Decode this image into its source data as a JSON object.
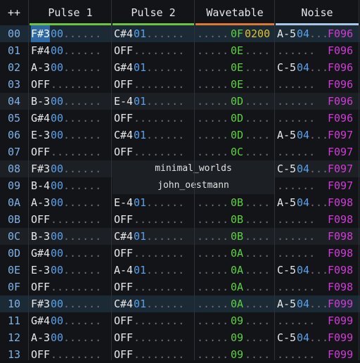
{
  "header": {
    "corner": "++",
    "columns": [
      {
        "label": "Pulse 1",
        "color": "#6fc43e"
      },
      {
        "label": "Pulse 2",
        "color": "#6fc43e"
      },
      {
        "label": "Wavetable",
        "color": "#e07830"
      },
      {
        "label": "Noise",
        "color": "#a8c8e8"
      }
    ]
  },
  "rows": [
    {
      "num": "00",
      "p1": "F#3",
      "p1i": "00",
      "p2": "C#4",
      "p2i": "01",
      "wt": "0F",
      "wtc": "0200",
      "nz": "A-5",
      "nzi": "04",
      "fx": "F096",
      "cursor": true,
      "p1sel": true
    },
    {
      "num": "01",
      "p1": "F#4",
      "p1i": "00",
      "p2": "OFF",
      "p2i": "",
      "wt": "0E",
      "wtc": "",
      "nz": "",
      "nzi": "",
      "fx": "F096"
    },
    {
      "num": "02",
      "p1": "A-3",
      "p1i": "00",
      "p2": "G#4",
      "p2i": "01",
      "wt": "0E",
      "wtc": "",
      "nz": "C-5",
      "nzi": "04",
      "fx": "F096"
    },
    {
      "num": "03",
      "p1": "OFF",
      "p1i": "",
      "p2": "OFF",
      "p2i": "",
      "wt": "0E",
      "wtc": "",
      "nz": "",
      "nzi": "",
      "fx": "F096"
    },
    {
      "num": "04",
      "p1": "B-3",
      "p1i": "00",
      "p2": "E-4",
      "p2i": "01",
      "wt": "0D",
      "wtc": "",
      "nz": "",
      "nzi": "",
      "fx": "F096",
      "alt": true
    },
    {
      "num": "05",
      "p1": "G#4",
      "p1i": "00",
      "p2": "OFF",
      "p2i": "",
      "wt": "0D",
      "wtc": "",
      "nz": "",
      "nzi": "",
      "fx": "F096"
    },
    {
      "num": "06",
      "p1": "E-3",
      "p1i": "00",
      "p2": "C#4",
      "p2i": "01",
      "wt": "0D",
      "wtc": "",
      "nz": "A-5",
      "nzi": "04",
      "fx": "F097"
    },
    {
      "num": "07",
      "p1": "OFF",
      "p1i": "",
      "p2": "OFF",
      "p2i": "",
      "wt": "0C",
      "wtc": "",
      "nz": "",
      "nzi": "",
      "fx": "F097"
    },
    {
      "num": "08",
      "p1": "F#3",
      "p1i": "00",
      "overlay": "minimal_worlds",
      "nz": "C-5",
      "nzi": "04",
      "fx": "F097",
      "alt": true
    },
    {
      "num": "09",
      "p1": "B-4",
      "p1i": "00",
      "overlay": "john_oestmann",
      "nz": "",
      "nzi": "",
      "fx": "F097"
    },
    {
      "num": "0A",
      "p1": "A-3",
      "p1i": "00",
      "p2": "E-4",
      "p2i": "01",
      "wt": "0B",
      "wtc": "",
      "nz": "A-5",
      "nzi": "04",
      "fx": "F098"
    },
    {
      "num": "0B",
      "p1": "OFF",
      "p1i": "",
      "p2": "OFF",
      "p2i": "",
      "wt": "0B",
      "wtc": "",
      "nz": "",
      "nzi": "",
      "fx": "F098"
    },
    {
      "num": "0C",
      "p1": "B-3",
      "p1i": "00",
      "p2": "C#4",
      "p2i": "01",
      "wt": "0B",
      "wtc": "",
      "nz": "",
      "nzi": "",
      "fx": "F098",
      "alt": true
    },
    {
      "num": "0D",
      "p1": "G#4",
      "p1i": "00",
      "p2": "OFF",
      "p2i": "",
      "wt": "0A",
      "wtc": "",
      "nz": "",
      "nzi": "",
      "fx": "F098"
    },
    {
      "num": "0E",
      "p1": "E-3",
      "p1i": "00",
      "p2": "A-4",
      "p2i": "01",
      "wt": "0A",
      "wtc": "",
      "nz": "C-5",
      "nzi": "04",
      "fx": "F098"
    },
    {
      "num": "0F",
      "p1": "OFF",
      "p1i": "",
      "p2": "OFF",
      "p2i": "",
      "wt": "0A",
      "wtc": "",
      "nz": "",
      "nzi": "",
      "fx": "F098"
    },
    {
      "num": "10",
      "p1": "F#3",
      "p1i": "00",
      "p2": "C#4",
      "p2i": "01",
      "wt": "0A",
      "wtc": "",
      "nz": "A-5",
      "nzi": "04",
      "fx": "F099",
      "cursor": true
    },
    {
      "num": "11",
      "p1": "G#4",
      "p1i": "00",
      "p2": "OFF",
      "p2i": "",
      "wt": "09",
      "wtc": "",
      "nz": "",
      "nzi": "",
      "fx": "F099"
    },
    {
      "num": "12",
      "p1": "A-3",
      "p1i": "00",
      "p2": "OFF",
      "p2i": "",
      "wt": "09",
      "wtc": "",
      "nz": "C-5",
      "nzi": "04",
      "fx": "F099"
    },
    {
      "num": "13",
      "p1": "OFF",
      "p1i": "",
      "p2": "OFF",
      "p2i": "",
      "wt": "09",
      "wtc": "",
      "nz": "",
      "nzi": "",
      "fx": "F099"
    }
  ]
}
